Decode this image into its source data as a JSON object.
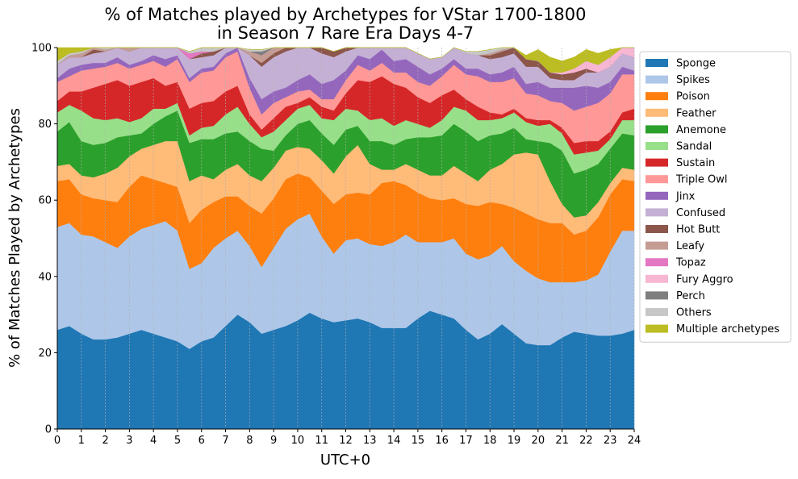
{
  "chart_data": {
    "type": "area",
    "title_lines": [
      "% of Matches played by Archetypes for VStar 1700-1800",
      "in Season 7 Rare Era Days 4-7"
    ],
    "xlabel": "UTC+0",
    "ylabel": "% of Matches Played by Archetypes",
    "xlim": [
      0,
      24
    ],
    "ylim": [
      0,
      100
    ],
    "x_ticks": [
      "0",
      "1",
      "2",
      "3",
      "4",
      "5",
      "6",
      "7",
      "8",
      "9",
      "10",
      "11",
      "12",
      "13",
      "14",
      "15",
      "16",
      "17",
      "18",
      "19",
      "20",
      "21",
      "22",
      "23",
      "24"
    ],
    "y_ticks": [
      "0",
      "20",
      "40",
      "60",
      "80",
      "100"
    ],
    "grid": "vertical dashed",
    "legend_position": "outside right, top",
    "x": [
      0,
      0.5,
      1,
      1.5,
      2,
      2.5,
      3,
      3.5,
      4,
      4.5,
      5,
      5.5,
      6,
      6.5,
      7,
      7.5,
      8,
      8.5,
      9,
      9.5,
      10,
      10.5,
      11,
      11.5,
      12,
      12.5,
      13,
      13.5,
      14,
      14.5,
      15,
      15.5,
      16,
      16.5,
      17,
      17.5,
      18,
      18.5,
      19,
      19.5,
      20,
      20.5,
      21,
      21.5,
      22,
      22.5,
      23,
      23.5,
      24
    ],
    "series": [
      {
        "name": "Sponge",
        "color": "#1f77b4",
        "values": [
          26,
          27,
          25,
          23.5,
          23.5,
          24,
          25,
          26,
          25,
          24,
          23,
          21,
          23,
          24,
          27,
          30,
          28,
          25,
          26,
          27,
          28.5,
          30.5,
          29,
          28,
          28.5,
          29,
          28,
          26.5,
          26.5,
          26.5,
          29,
          31,
          30,
          29,
          26,
          23.5,
          25,
          27.5,
          25,
          22.5,
          22,
          22,
          24,
          25.5,
          25,
          24.5,
          24.5,
          25,
          26
        ]
      },
      {
        "name": "Spikes",
        "color": "#aec7e8",
        "values": [
          27,
          27,
          26,
          27,
          25.5,
          23.5,
          25.5,
          26.5,
          28.5,
          30.5,
          29,
          21,
          20.5,
          23.5,
          23,
          22,
          20,
          17.5,
          21.5,
          25.5,
          26.5,
          26,
          21.5,
          18,
          21,
          21,
          20.5,
          21.5,
          22.5,
          24.5,
          20,
          18,
          19,
          21,
          20,
          21,
          20.5,
          20.5,
          19,
          19,
          17.5,
          16.5,
          14.5,
          13,
          14,
          16,
          22,
          27,
          26
        ]
      },
      {
        "name": "Poison",
        "color": "#ff7f0e",
        "values": [
          12,
          11.5,
          10.5,
          10,
          11,
          12,
          13,
          14,
          12,
          10,
          11.5,
          12,
          14,
          12,
          11,
          9,
          10.5,
          14,
          13,
          13,
          12,
          9.5,
          12,
          13,
          12,
          12,
          13,
          16.5,
          16,
          13,
          13,
          11.5,
          11,
          10.5,
          13,
          14,
          14,
          11,
          14,
          15,
          15.5,
          15.5,
          15.5,
          12.5,
          13,
          15,
          15,
          13.5,
          13
        ]
      },
      {
        "name": "Feather",
        "color": "#ffbb78",
        "values": [
          4,
          4,
          5,
          5.5,
          7,
          9,
          8,
          7,
          9,
          11,
          12,
          11,
          9,
          6,
          7,
          8.5,
          8,
          8.5,
          8,
          7.5,
          7,
          7.5,
          8,
          8,
          10,
          12.5,
          8,
          3.5,
          3,
          5.5,
          6,
          6,
          6.5,
          8.5,
          8,
          6.5,
          8.5,
          10.5,
          14,
          16,
          17,
          11,
          5,
          4.5,
          4,
          4,
          3,
          3,
          3
        ]
      },
      {
        "name": "Anemone",
        "color": "#2ca02c",
        "values": [
          9,
          11,
          9,
          8.5,
          8,
          8,
          5.5,
          4,
          5.5,
          6.5,
          8,
          10,
          9.5,
          10.5,
          9.5,
          8.5,
          9,
          8.5,
          4.5,
          4,
          6,
          7.5,
          7,
          7.5,
          7,
          5,
          6,
          7.5,
          6.5,
          6.5,
          8.5,
          10,
          10.5,
          11,
          11,
          10.5,
          9,
          8,
          7,
          3.5,
          3.5,
          10,
          14,
          11.5,
          12,
          10,
          9,
          9,
          9
        ]
      },
      {
        "name": "Sandal",
        "color": "#98df8a",
        "values": [
          5,
          4.5,
          8,
          7,
          6,
          5,
          3.5,
          4,
          4,
          2,
          2,
          2,
          3,
          3.5,
          5,
          6.5,
          4.5,
          3,
          5,
          4,
          4,
          4,
          4,
          6.5,
          5.5,
          4,
          5.5,
          6,
          5,
          5,
          3.5,
          2.5,
          4,
          4.5,
          5.5,
          5.5,
          4,
          4,
          4,
          4.5,
          4,
          5,
          4.5,
          5,
          4.5,
          3.5,
          2.5,
          3.5,
          4
        ]
      },
      {
        "name": "Sustain",
        "color": "#d62728",
        "values": [
          3,
          3.5,
          5,
          8,
          9.5,
          10,
          9.5,
          9.5,
          8,
          6,
          5.5,
          7,
          6.5,
          6.5,
          6,
          5.5,
          2.5,
          2,
          3.5,
          3.5,
          1.5,
          2,
          3,
          2.5,
          4,
          8,
          10,
          11,
          11,
          8.5,
          7,
          6.5,
          6.5,
          4.5,
          3,
          3.5,
          2,
          1,
          1,
          1,
          1.5,
          1,
          1.5,
          3,
          3,
          2.5,
          2,
          2,
          3
        ]
      },
      {
        "name": "Triple Owl",
        "color": "#ff9896",
        "values": [
          5,
          4,
          5.5,
          5,
          4.5,
          4.5,
          4.5,
          4.5,
          4.5,
          5,
          6,
          7,
          8,
          8,
          9,
          9,
          7,
          4,
          4,
          2.5,
          3,
          2,
          2,
          3,
          3.5,
          4,
          3,
          3.5,
          3,
          4,
          4,
          4.5,
          5,
          6.5,
          6.5,
          8,
          8,
          8.5,
          8,
          6.5,
          6.5,
          5,
          6.5,
          8.5,
          9,
          10,
          10,
          10,
          9
        ]
      },
      {
        "name": "Jinx",
        "color": "#9467bd",
        "values": [
          1,
          2,
          1.5,
          1.5,
          1,
          1.5,
          1,
          1,
          1.5,
          2,
          1,
          1,
          1,
          1,
          1,
          2.5,
          2.5,
          4,
          3,
          2.5,
          3,
          4,
          4,
          5,
          2.5,
          2.5,
          3,
          3.5,
          3,
          3.5,
          4,
          3,
          2,
          1.5,
          1.5,
          2,
          2,
          2.5,
          3,
          2.5,
          3.5,
          3.5,
          4,
          6,
          5.5,
          4,
          3,
          2,
          1
        ]
      },
      {
        "name": "Confused",
        "color": "#c5b0d5",
        "values": [
          3.5,
          3,
          2,
          2.5,
          3,
          3,
          3.5,
          3.5,
          5,
          4,
          3.5,
          5,
          3,
          3,
          3.5,
          3.5,
          6,
          8.5,
          9,
          9.5,
          8.5,
          8,
          8,
          6,
          5,
          3.5,
          3,
          2,
          4,
          4,
          3.5,
          4,
          3,
          3.5,
          4,
          3.5,
          4,
          4,
          3.5,
          4.5,
          4,
          2.5,
          2,
          2,
          3.5,
          4,
          4,
          3.5,
          3.5
        ]
      },
      {
        "name": "Hot Butt",
        "color": "#8c564b",
        "values": [
          0,
          0,
          0,
          1,
          0,
          1,
          0,
          1,
          1.5,
          0,
          0,
          0,
          1,
          1,
          0.5,
          0,
          0,
          1,
          1,
          1.5,
          2,
          2,
          1.5,
          1.5,
          1,
          0.5,
          0.5,
          0,
          0,
          0,
          0,
          0,
          0,
          0,
          0,
          0,
          1,
          1.5,
          2,
          2,
          1.5,
          1.5,
          1.5,
          2,
          1,
          0,
          0,
          0,
          0
        ]
      },
      {
        "name": "Leafy",
        "color": "#c49c94",
        "values": [
          0,
          0.5,
          1,
          0.5,
          0.5,
          1,
          1,
          1,
          0.5,
          0,
          0,
          0,
          0,
          0,
          0,
          0,
          1,
          2,
          3,
          2,
          1,
          1,
          0,
          0,
          0,
          0,
          0,
          0,
          0,
          0,
          0,
          0,
          0,
          0,
          0,
          0,
          0.5,
          0.5,
          0.5,
          0,
          0,
          0,
          0,
          0,
          0,
          0,
          0,
          0,
          0
        ]
      },
      {
        "name": "Topaz",
        "color": "#e377c2",
        "values": [
          0,
          0,
          0,
          0,
          0,
          0,
          0,
          0,
          0,
          0,
          0.5,
          1.5,
          0.5,
          0,
          0,
          0,
          0,
          0,
          0,
          0,
          0,
          0,
          0,
          0,
          0,
          0,
          0,
          0,
          0,
          0,
          0,
          0,
          0,
          0,
          0,
          0,
          0,
          0,
          0,
          0,
          0,
          0,
          0,
          0,
          0,
          0,
          0,
          0,
          0
        ]
      },
      {
        "name": "Fury Aggro",
        "color": "#f7b6d2",
        "values": [
          0,
          0,
          0,
          0,
          0,
          0,
          0,
          0,
          0,
          0,
          0,
          0,
          0,
          0,
          0,
          0,
          0,
          0,
          0,
          0,
          0,
          0,
          0,
          0,
          0,
          0,
          0,
          0,
          0,
          0,
          0,
          0,
          0,
          0,
          0,
          0,
          0,
          0,
          0,
          0,
          0,
          0,
          0.5,
          1,
          2,
          2,
          2.5,
          2.5,
          2.5
        ]
      },
      {
        "name": "Perch",
        "color": "#7f7f7f",
        "values": [
          0,
          0,
          0,
          0,
          0,
          0,
          0,
          0,
          0,
          0,
          0,
          0,
          0,
          0,
          0,
          0,
          0,
          1,
          1,
          0,
          0,
          0,
          0,
          0,
          0,
          0,
          0,
          0,
          0,
          0,
          0,
          0,
          0,
          0,
          0,
          0,
          0,
          0,
          0,
          0,
          0,
          0,
          0,
          0,
          0,
          0,
          0,
          0,
          0
        ]
      },
      {
        "name": "Others",
        "color": "#c7c7c7",
        "values": [
          1,
          0.5,
          0.5,
          0.5,
          2,
          1,
          1.5,
          0.5,
          0,
          0.5,
          0,
          0.5,
          1,
          1,
          0,
          0,
          0.5,
          0.5,
          0,
          0,
          0,
          0,
          0,
          0,
          0,
          0,
          0,
          0,
          0.5,
          0,
          0,
          0,
          0,
          0,
          0.5,
          1,
          1,
          0.5,
          0.5,
          0,
          0,
          0,
          0,
          0,
          0,
          0,
          0,
          0,
          0
        ]
      },
      {
        "name": "Multiple archetypes",
        "color": "#bcbd22",
        "values": [
          3.5,
          1.5,
          1,
          0.5,
          0.5,
          0.5,
          0,
          0,
          0,
          0,
          0.5,
          0,
          0,
          0,
          0,
          0,
          0,
          0,
          0,
          0,
          0,
          0,
          0,
          0,
          0,
          0,
          0,
          0,
          0,
          0,
          0,
          0,
          0,
          0,
          0,
          0,
          0,
          0,
          0,
          1,
          3,
          4,
          3,
          3,
          3,
          3,
          2,
          1,
          1
        ]
      }
    ]
  }
}
